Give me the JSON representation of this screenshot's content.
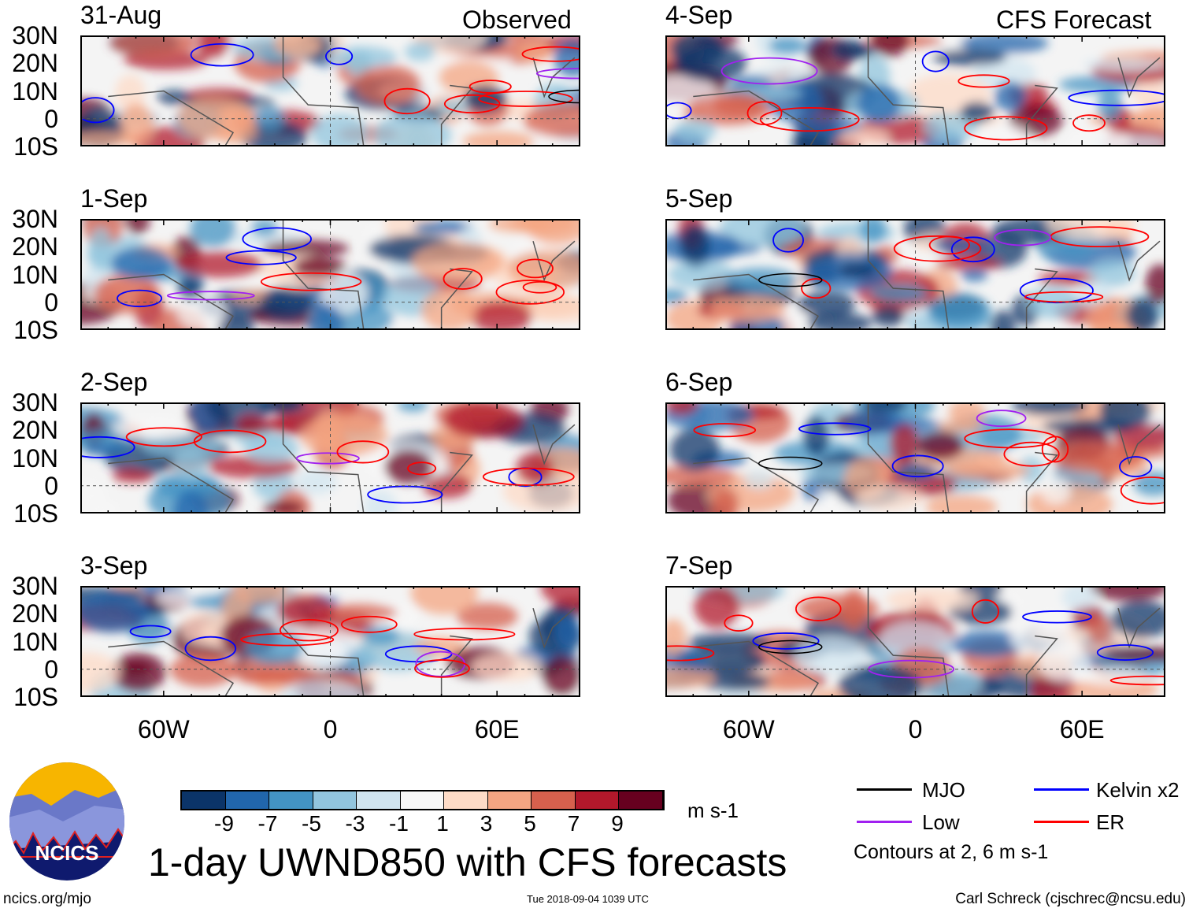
{
  "chart_data": {
    "type": "heatmap",
    "title": "1-day UWND850 with CFS forecasts",
    "variable": "850 hPa zonal wind anomaly",
    "units": "m s-1",
    "lat_ticks": [
      "30N",
      "20N",
      "10N",
      "0",
      "10S"
    ],
    "lon_ticks": [
      "60W",
      "0",
      "60E"
    ],
    "lat_range": [
      -10,
      30
    ],
    "lon_range": [
      -90,
      90
    ],
    "panels": [
      {
        "date": "31-Aug",
        "label": "Observed"
      },
      {
        "date": "1-Sep"
      },
      {
        "date": "2-Sep"
      },
      {
        "date": "3-Sep"
      },
      {
        "date": "4-Sep",
        "label": "CFS Forecast"
      },
      {
        "date": "5-Sep"
      },
      {
        "date": "6-Sep"
      },
      {
        "date": "7-Sep"
      }
    ],
    "colorbar": {
      "labels": [
        "-9",
        "-7",
        "-5",
        "-3",
        "-1",
        "1",
        "3",
        "5",
        "7",
        "9"
      ],
      "colors": [
        "#0b3468",
        "#2166ac",
        "#4393c3",
        "#92c5de",
        "#d1e5f0",
        "#f7f7f7",
        "#fddbc7",
        "#f4a582",
        "#d6604d",
        "#b2182b",
        "#67001f"
      ],
      "units": "m s-1"
    },
    "legend": [
      {
        "label": "MJO",
        "color": "#000000"
      },
      {
        "label": "Kelvin x2",
        "color": "#0000ff"
      },
      {
        "label": "Low",
        "color": "#a020f0"
      },
      {
        "label": "ER",
        "color": "#ff0000"
      }
    ],
    "contour_note": "Contours at 2, 6 m s-1"
  },
  "logo": {
    "text": "NCICS"
  },
  "footer": {
    "left": "ncics.org/mjo",
    "center": "Tue 2018-09-04 1039 UTC",
    "right": "Carl Schreck (cjschrec@ncsu.edu)"
  }
}
